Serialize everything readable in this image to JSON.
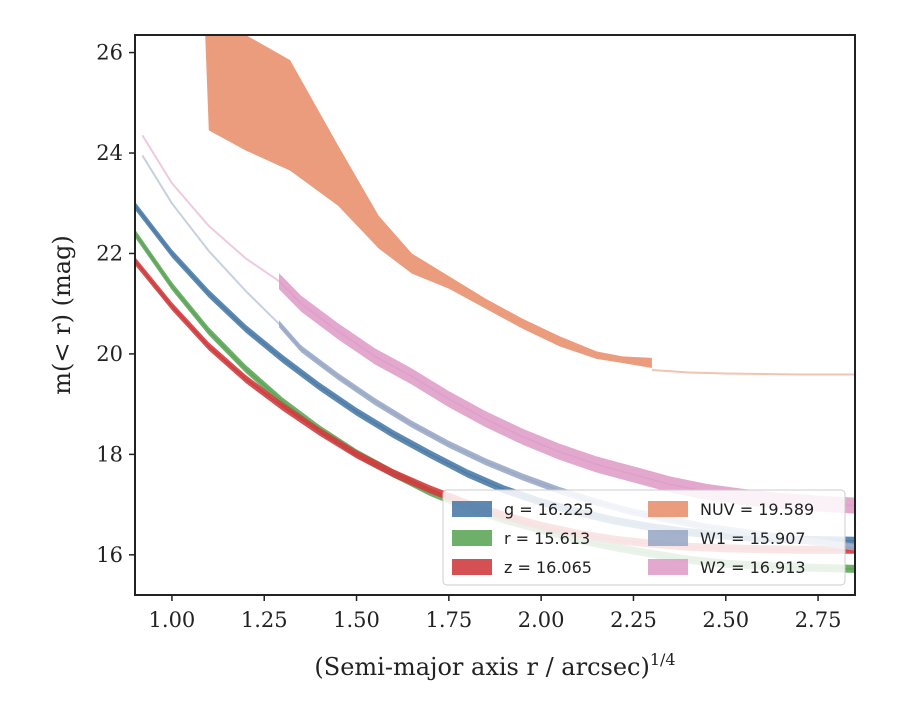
{
  "chart_data": {
    "type": "line",
    "xlabel": "(Semi-major axis r / arcsec)",
    "xlabel_superscript": "1/4",
    "ylabel": "m(< r) (mag)",
    "xlim": [
      0.9,
      2.85
    ],
    "ylim": [
      26.35,
      15.2
    ],
    "y_inverted": true,
    "xticks": [
      1.0,
      1.25,
      1.5,
      1.75,
      2.0,
      2.25,
      2.5,
      2.75
    ],
    "xtick_labels": [
      "1.00",
      "1.25",
      "1.50",
      "1.75",
      "2.00",
      "2.25",
      "2.50",
      "2.75"
    ],
    "yticks": [
      16,
      18,
      20,
      22,
      24,
      26
    ],
    "ytick_labels": [
      "16",
      "18",
      "20",
      "22",
      "24",
      "26"
    ],
    "grid": false,
    "legend_position": "lower-right",
    "legend_columns": 2,
    "series": [
      {
        "name": "g = 16.225",
        "color": "#4c7ca8",
        "band": 0.08,
        "x": [
          0.9,
          1.0,
          1.1,
          1.2,
          1.3,
          1.4,
          1.5,
          1.6,
          1.7,
          1.8,
          1.9,
          2.0,
          2.1,
          2.2,
          2.3,
          2.4,
          2.5,
          2.6,
          2.7,
          2.85
        ],
        "y": [
          22.95,
          22.0,
          21.2,
          20.5,
          19.9,
          19.35,
          18.85,
          18.4,
          18.0,
          17.62,
          17.3,
          17.05,
          16.85,
          16.68,
          16.55,
          16.45,
          16.38,
          16.33,
          16.3,
          16.28
        ],
        "faint_x": [],
        "faint_y": []
      },
      {
        "name": "r = 15.613",
        "color": "#5ea65a",
        "band": 0.08,
        "x": [
          0.9,
          1.0,
          1.1,
          1.2,
          1.3,
          1.4,
          1.5,
          1.6,
          1.7,
          1.8,
          1.9,
          2.0,
          2.1,
          2.2,
          2.3,
          2.4,
          2.5,
          2.6,
          2.7,
          2.85
        ],
        "y": [
          22.4,
          21.35,
          20.45,
          19.7,
          19.05,
          18.5,
          18.02,
          17.62,
          17.25,
          16.95,
          16.7,
          16.5,
          16.3,
          16.15,
          16.02,
          15.9,
          15.82,
          15.78,
          15.75,
          15.72
        ],
        "faint_x": [],
        "faint_y": []
      },
      {
        "name": "z = 16.065",
        "color": "#d03d3f",
        "band": 0.08,
        "x": [
          0.9,
          1.0,
          1.1,
          1.2,
          1.3,
          1.4,
          1.5,
          1.6,
          1.7,
          1.8,
          1.9,
          2.0,
          2.1,
          2.2,
          2.3,
          2.4,
          2.5,
          2.6,
          2.7,
          2.85
        ],
        "y": [
          21.85,
          20.95,
          20.15,
          19.5,
          18.95,
          18.45,
          18.0,
          17.62,
          17.3,
          17.02,
          16.78,
          16.58,
          16.42,
          16.3,
          16.22,
          16.16,
          16.13,
          16.11,
          16.1,
          16.1
        ],
        "faint_x": [],
        "faint_y": []
      },
      {
        "name": "NUV = 19.589",
        "color": "#e8916f",
        "band_x": [
          1.09,
          1.1,
          1.2,
          1.32,
          1.45,
          1.56,
          1.65,
          1.75,
          1.85,
          1.95,
          2.05,
          2.15,
          2.22,
          2.3
        ],
        "band_upper": [
          26.35,
          24.45,
          24.05,
          23.65,
          22.95,
          22.1,
          21.6,
          21.3,
          20.9,
          20.5,
          20.15,
          19.9,
          19.82,
          19.72
        ],
        "band_lower": [
          26.35,
          26.35,
          26.35,
          25.85,
          24.15,
          22.75,
          22.0,
          21.55,
          21.1,
          20.7,
          20.35,
          20.05,
          19.95,
          19.92
        ],
        "faint_x": [
          2.3,
          2.4,
          2.5,
          2.6,
          2.7,
          2.85
        ],
        "faint_y": [
          19.68,
          19.63,
          19.61,
          19.6,
          19.59,
          19.59
        ]
      },
      {
        "name": "W1 = 15.907",
        "color": "#9aaac6",
        "band": 0.07,
        "x": [
          1.29,
          1.35,
          1.45,
          1.55,
          1.65,
          1.75,
          1.85,
          1.95,
          2.05,
          2.15,
          2.25,
          2.35,
          2.45,
          2.55,
          2.65,
          2.75,
          2.85
        ],
        "y": [
          20.6,
          20.1,
          19.55,
          19.05,
          18.6,
          18.2,
          17.85,
          17.55,
          17.28,
          17.05,
          16.85,
          16.7,
          16.55,
          16.45,
          16.35,
          16.25,
          16.15
        ],
        "faint_x": [
          0.92,
          1.0,
          1.1,
          1.2,
          1.29
        ],
        "faint_y": [
          23.95,
          23.0,
          22.05,
          21.25,
          20.6
        ]
      },
      {
        "name": "W2 = 16.913",
        "color": "#e09fc8",
        "band": 0.16,
        "x": [
          1.29,
          1.35,
          1.45,
          1.55,
          1.65,
          1.75,
          1.85,
          1.95,
          2.05,
          2.15,
          2.25,
          2.35,
          2.45,
          2.55,
          2.65,
          2.75,
          2.85
        ],
        "y": [
          21.45,
          21.0,
          20.45,
          19.95,
          19.55,
          19.1,
          18.7,
          18.35,
          18.05,
          17.8,
          17.6,
          17.4,
          17.25,
          17.15,
          17.07,
          17.02,
          16.98
        ],
        "faint_x": [
          0.92,
          1.0,
          1.1,
          1.2,
          1.29
        ],
        "faint_y": [
          24.35,
          23.4,
          22.55,
          21.9,
          21.45
        ]
      }
    ]
  }
}
